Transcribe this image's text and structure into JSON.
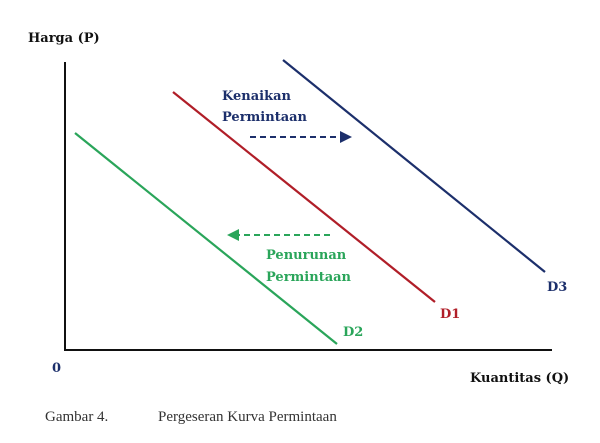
{
  "diagram": {
    "y_axis_label": "Harga (P)",
    "x_axis_label": "Kuantitas (Q)",
    "origin_label": "0",
    "curves": [
      {
        "label": "D1",
        "color": "#b01e28"
      },
      {
        "label": "D2",
        "color": "#2aa55a"
      },
      {
        "label": "D3",
        "color": "#1c2f6b"
      }
    ],
    "annotations": {
      "increase": [
        "Kenaikan",
        "Permintaan"
      ],
      "decrease": [
        "Penurunan",
        "Permintaan"
      ]
    },
    "caption": {
      "number": "Gambar 4.",
      "text": "Pergeseran Kurva Permintaan"
    }
  }
}
